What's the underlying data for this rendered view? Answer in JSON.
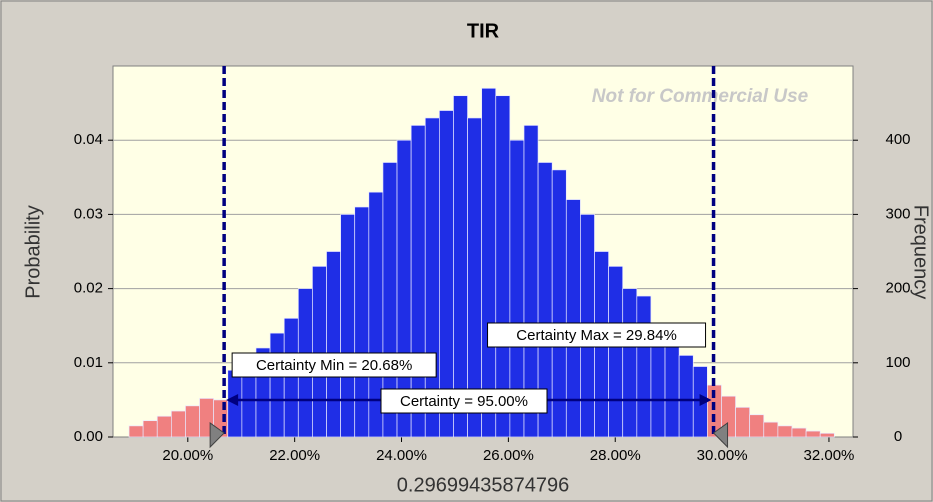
{
  "chart_data": {
    "type": "histogram",
    "title": "TIR",
    "x_label": "0.29699435874796",
    "y_label": "Probability",
    "y2_label": "Frequency",
    "watermark": "Not for Commercial Use",
    "bins": [
      18.9,
      19.164,
      19.428,
      19.692,
      19.956,
      20.22,
      20.484,
      20.748,
      21.012,
      21.276,
      21.54,
      21.804,
      22.068,
      22.332,
      22.596,
      22.86,
      23.124,
      23.388,
      23.652,
      23.916,
      24.18,
      24.444,
      24.708,
      24.972,
      25.236,
      25.5,
      25.764,
      26.028,
      26.292,
      26.556,
      26.82,
      27.084,
      27.348,
      27.612,
      27.876,
      28.14,
      28.404,
      28.668,
      28.932,
      29.196,
      29.46,
      29.724,
      29.988,
      30.252,
      30.516,
      30.78,
      31.044,
      31.308,
      31.572,
      31.836,
      32.1
    ],
    "values": [
      0.0015,
      0.0022,
      0.0028,
      0.0035,
      0.0042,
      0.0052,
      0.005,
      0.009,
      0.01,
      0.012,
      0.014,
      0.016,
      0.02,
      0.023,
      0.025,
      0.03,
      0.031,
      0.033,
      0.037,
      0.04,
      0.042,
      0.043,
      0.044,
      0.046,
      0.043,
      0.047,
      0.046,
      0.04,
      0.042,
      0.037,
      0.036,
      0.032,
      0.03,
      0.025,
      0.023,
      0.02,
      0.019,
      0.015,
      0.013,
      0.011,
      0.0095,
      0.007,
      0.0055,
      0.004,
      0.003,
      0.002,
      0.0015,
      0.0012,
      0.0008,
      0.0005
    ],
    "inside_color": "#1f2ee6",
    "outside_color": "#f08080",
    "xlim": [
      18.6,
      32.45
    ],
    "xticks": [
      {
        "value": 20,
        "label": "20.00%"
      },
      {
        "value": 22,
        "label": "22.00%"
      },
      {
        "value": 24,
        "label": "24.00%"
      },
      {
        "value": 26,
        "label": "26.00%"
      },
      {
        "value": 28,
        "label": "28.00%"
      },
      {
        "value": 30,
        "label": "30.00%"
      },
      {
        "value": 32,
        "label": "32.00%"
      }
    ],
    "ylim": [
      0,
      0.05
    ],
    "yticks": [
      {
        "value": 0,
        "label": "0.00"
      },
      0.01,
      0.02,
      0.03,
      0.04
    ],
    "y2lim": [
      0,
      500
    ],
    "y2ticks": [
      0,
      100,
      200,
      300,
      400
    ],
    "grid": true,
    "certainty_min": {
      "value": 20.68,
      "label": "Certainty Min = 20.68%"
    },
    "certainty_max": {
      "value": 29.84,
      "label": "Certainty Max = 29.84%"
    },
    "certainty": {
      "value": 95.0,
      "label": "Certainty = 95.00%"
    }
  }
}
